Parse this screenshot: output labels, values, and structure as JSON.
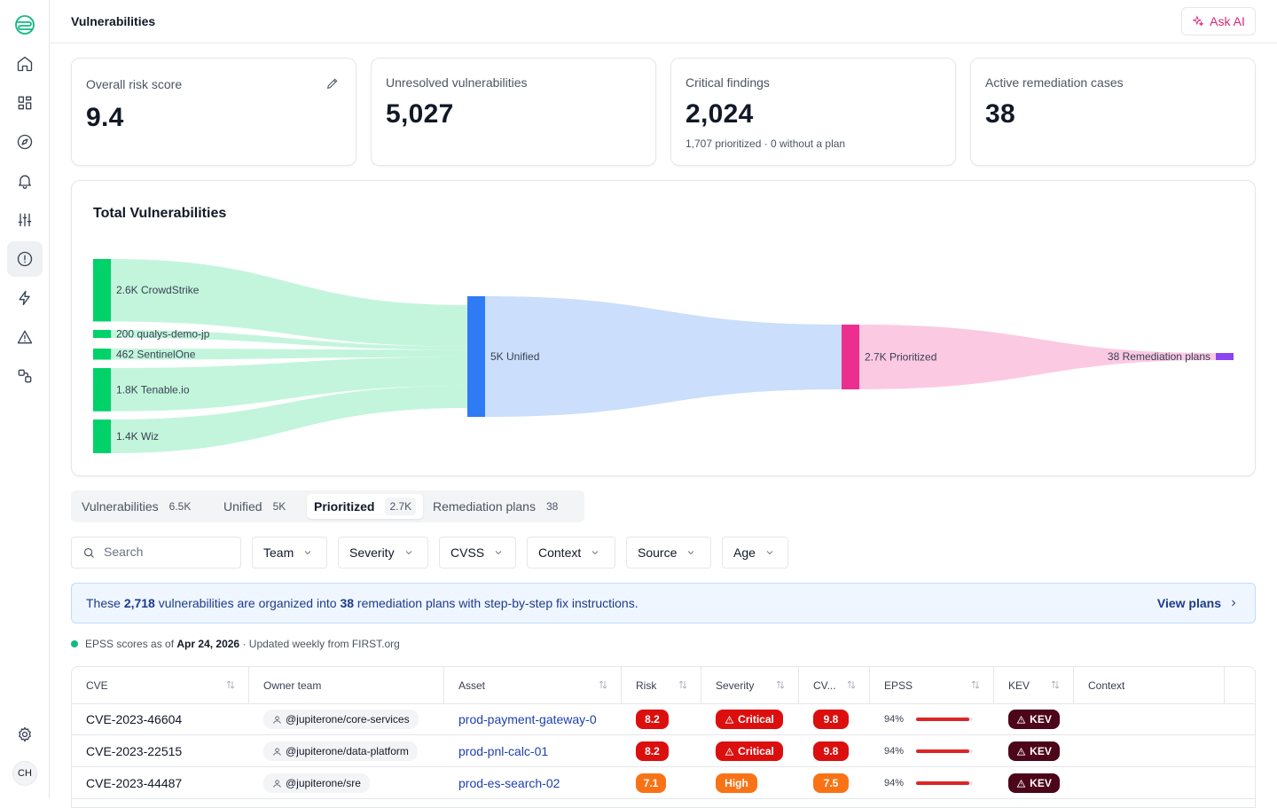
{
  "header": {
    "title": "Vulnerabilities",
    "ask_ai": "Ask AI"
  },
  "sidebar": {
    "icons": [
      "logo-icon",
      "home-icon",
      "dashboard-icon",
      "compass-icon",
      "bell-icon",
      "sliders-icon",
      "alert-circle-icon",
      "bolt-icon",
      "warning-icon",
      "integrations-icon",
      "gear-icon"
    ],
    "active": "alert-circle-icon",
    "avatar": "CH"
  },
  "cards": [
    {
      "label": "Overall risk score",
      "value": "9.4",
      "sub": ""
    },
    {
      "label": "Unresolved vulnerabilities",
      "value": "5,027",
      "sub": ""
    },
    {
      "label": "Critical findings",
      "value": "2,024",
      "sub": "1,707 prioritized · 0 without a plan"
    },
    {
      "label": "Active remediation cases",
      "value": "38",
      "sub": ""
    }
  ],
  "chart_data": {
    "type": "sankey",
    "title": "Total Vulnerabilities",
    "nodes": [
      {
        "id": "crowdstrike",
        "label": "2.6K CrowdStrike",
        "value": 2600,
        "color": "#00d26a"
      },
      {
        "id": "qualys",
        "label": "200 qualys-demo-jp",
        "value": 200,
        "color": "#00d26a"
      },
      {
        "id": "sentinelone",
        "label": "462 SentinelOne",
        "value": 462,
        "color": "#00d26a"
      },
      {
        "id": "tenable",
        "label": "1.8K Tenable.io",
        "value": 1800,
        "color": "#00d26a"
      },
      {
        "id": "wiz",
        "label": "1.4K Wiz",
        "value": 1400,
        "color": "#00d26a"
      },
      {
        "id": "unified",
        "label": "5K Unified",
        "value": 5000,
        "color": "#2f7bf6"
      },
      {
        "id": "prioritized",
        "label": "2.7K Prioritized",
        "value": 2700,
        "color": "#ec2f8e"
      },
      {
        "id": "plans",
        "label": "38 Remediation plans",
        "value": 38,
        "color": "#8b45f0"
      }
    ],
    "links": [
      {
        "source": "crowdstrike",
        "target": "unified"
      },
      {
        "source": "qualys",
        "target": "unified"
      },
      {
        "source": "sentinelone",
        "target": "unified"
      },
      {
        "source": "tenable",
        "target": "unified"
      },
      {
        "source": "wiz",
        "target": "unified"
      },
      {
        "source": "unified",
        "target": "prioritized"
      },
      {
        "source": "prioritized",
        "target": "plans"
      }
    ],
    "link_colors": {
      "sources": "#c3f5dd",
      "unified": "#cbdefb",
      "prioritized": "#fcc9e3"
    }
  },
  "tabs": [
    {
      "label": "Vulnerabilities",
      "count": "6.5K"
    },
    {
      "label": "Unified",
      "count": "5K"
    },
    {
      "label": "Prioritized",
      "count": "2.7K",
      "active": true
    },
    {
      "label": "Remediation plans",
      "count": "38"
    }
  ],
  "search": {
    "placeholder": "Search"
  },
  "filters": [
    "Team",
    "Severity",
    "CVSS",
    "Context",
    "Source",
    "Age"
  ],
  "banner": {
    "pre": "These ",
    "count": "2,718",
    "mid": " vulnerabilities are organized into ",
    "plans": "38",
    "post": " remediation plans with step-by-step fix instructions.",
    "link": "View plans"
  },
  "epss_note": {
    "pre": "EPSS scores as of ",
    "date": "Apr 24, 2026",
    "post": " · Updated weekly from FIRST.org"
  },
  "table": {
    "columns": [
      "CVE",
      "Owner team",
      "Asset",
      "Risk",
      "Severity",
      "CV...",
      "EPSS",
      "KEV",
      "Context"
    ],
    "rows": [
      {
        "cve": "CVE-2023-46604",
        "owner": "@jupiterone/core-services",
        "asset": "prod-payment-gateway-0",
        "risk": "8.2",
        "risk_color": "#dc0f0f",
        "severity": "Critical",
        "severity_color": "#dc0f0f",
        "cvss": "9.8",
        "cvss_color": "#dc0f0f",
        "epss": "94%",
        "epss_fraction": 0.94,
        "kev": "KEV"
      },
      {
        "cve": "CVE-2023-22515",
        "owner": "@jupiterone/data-platform",
        "asset": "prod-pnl-calc-01",
        "risk": "8.2",
        "risk_color": "#dc0f0f",
        "severity": "Critical",
        "severity_color": "#dc0f0f",
        "cvss": "9.8",
        "cvss_color": "#dc0f0f",
        "epss": "94%",
        "epss_fraction": 0.94,
        "kev": "KEV"
      },
      {
        "cve": "CVE-2023-44487",
        "owner": "@jupiterone/sre",
        "asset": "prod-es-search-02",
        "risk": "7.1",
        "risk_color": "#f97316",
        "severity": "High",
        "severity_color": "#f97316",
        "cvss": "7.5",
        "cvss_color": "#f97316",
        "epss": "94%",
        "epss_fraction": 0.94,
        "kev": "KEV"
      }
    ]
  }
}
